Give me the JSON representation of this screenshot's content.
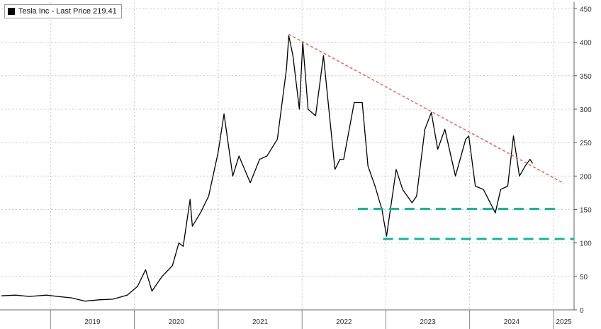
{
  "chart_data": {
    "type": "line",
    "legend": {
      "label": "Tesla Inc - Last Price 219.41",
      "color": "#000000",
      "placement": "top-left"
    },
    "x_ticks": [
      "2019",
      "2020",
      "2021",
      "2022",
      "2023",
      "2024",
      "2025"
    ],
    "y_ticks": [
      0,
      50,
      100,
      150,
      200,
      250,
      300,
      350,
      400,
      450
    ],
    "xlim": [
      "2018-06-01",
      "2025-03-31"
    ],
    "ylim": [
      0,
      460
    ],
    "grid": true,
    "series": [
      {
        "name": "Tesla Inc - Last Price",
        "color": "#000000",
        "points": [
          [
            "2018-06-01",
            21
          ],
          [
            "2018-08-01",
            22
          ],
          [
            "2018-10-01",
            20
          ],
          [
            "2018-12-15",
            22
          ],
          [
            "2019-02-01",
            20
          ],
          [
            "2019-04-01",
            18
          ],
          [
            "2019-06-01",
            13
          ],
          [
            "2019-08-01",
            15
          ],
          [
            "2019-10-01",
            16
          ],
          [
            "2019-12-01",
            22
          ],
          [
            "2020-01-15",
            35
          ],
          [
            "2020-02-19",
            60
          ],
          [
            "2020-03-18",
            28
          ],
          [
            "2020-05-01",
            50
          ],
          [
            "2020-06-15",
            66
          ],
          [
            "2020-07-13",
            100
          ],
          [
            "2020-08-01",
            95
          ],
          [
            "2020-08-31",
            165
          ],
          [
            "2020-09-10",
            125
          ],
          [
            "2020-10-15",
            145
          ],
          [
            "2020-11-20",
            170
          ],
          [
            "2020-12-31",
            235
          ],
          [
            "2021-01-26",
            293
          ],
          [
            "2021-03-05",
            200
          ],
          [
            "2021-04-01",
            230
          ],
          [
            "2021-05-20",
            190
          ],
          [
            "2021-06-30",
            225
          ],
          [
            "2021-08-01",
            230
          ],
          [
            "2021-09-15",
            255
          ],
          [
            "2021-10-25",
            360
          ],
          [
            "2021-11-04",
            410
          ],
          [
            "2021-11-22",
            380
          ],
          [
            "2021-12-20",
            300
          ],
          [
            "2022-01-04",
            400
          ],
          [
            "2022-01-27",
            300
          ],
          [
            "2022-03-01",
            290
          ],
          [
            "2022-04-04",
            380
          ],
          [
            "2022-05-24",
            210
          ],
          [
            "2022-06-15",
            225
          ],
          [
            "2022-07-01",
            225
          ],
          [
            "2022-08-16",
            310
          ],
          [
            "2022-09-20",
            310
          ],
          [
            "2022-10-15",
            215
          ],
          [
            "2022-11-15",
            185
          ],
          [
            "2022-12-15",
            150
          ],
          [
            "2023-01-04",
            110
          ],
          [
            "2023-02-15",
            210
          ],
          [
            "2023-03-15",
            180
          ],
          [
            "2023-04-25",
            160
          ],
          [
            "2023-05-15",
            170
          ],
          [
            "2023-06-20",
            270
          ],
          [
            "2023-07-18",
            295
          ],
          [
            "2023-08-15",
            240
          ],
          [
            "2023-09-15",
            270
          ],
          [
            "2023-10-31",
            200
          ],
          [
            "2023-12-15",
            255
          ],
          [
            "2023-12-28",
            260
          ],
          [
            "2024-01-26",
            185
          ],
          [
            "2024-03-01",
            180
          ],
          [
            "2024-04-22",
            145
          ],
          [
            "2024-05-15",
            180
          ],
          [
            "2024-06-15",
            185
          ],
          [
            "2024-07-10",
            260
          ],
          [
            "2024-08-05",
            200
          ],
          [
            "2024-08-30",
            215
          ],
          [
            "2024-09-20",
            225
          ],
          [
            "2024-10-01",
            219
          ]
        ]
      }
    ],
    "trendlines": [
      {
        "style": "dashed",
        "color": "#f26b5b",
        "from": [
          "2021-11-04",
          412
        ],
        "to": [
          "2025-02-15",
          189
        ]
      },
      {
        "style": "dashed",
        "color": "#17b3a0",
        "from": [
          "2022-09-01",
          151
        ],
        "to": [
          "2025-02-01",
          151
        ]
      },
      {
        "style": "dashed",
        "color": "#17b3a0",
        "from": [
          "2022-12-20",
          106
        ],
        "to": [
          "2025-03-31",
          106
        ]
      }
    ]
  }
}
